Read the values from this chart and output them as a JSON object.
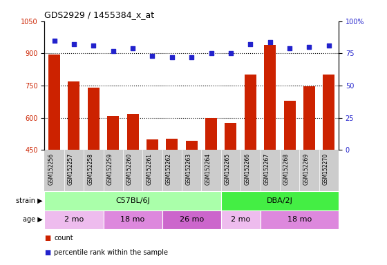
{
  "title": "GDS2929 / 1455384_x_at",
  "samples": [
    "GSM152256",
    "GSM152257",
    "GSM152258",
    "GSM152259",
    "GSM152260",
    "GSM152261",
    "GSM152262",
    "GSM152263",
    "GSM152264",
    "GSM152265",
    "GSM152266",
    "GSM152267",
    "GSM152268",
    "GSM152269",
    "GSM152270"
  ],
  "counts": [
    895,
    770,
    740,
    610,
    618,
    500,
    502,
    493,
    598,
    578,
    800,
    940,
    680,
    748,
    800
  ],
  "percentile": [
    85,
    82,
    81,
    77,
    79,
    73,
    72,
    72,
    75,
    75,
    82,
    84,
    79,
    80,
    81
  ],
  "ylim_left": [
    450,
    1050
  ],
  "ylim_right": [
    0,
    100
  ],
  "yticks_left": [
    450,
    600,
    750,
    900,
    1050
  ],
  "yticks_right": [
    0,
    25,
    50,
    75,
    100
  ],
  "bar_color": "#cc2200",
  "dot_color": "#2222cc",
  "strain_groups": [
    {
      "label": "C57BL/6J",
      "start": 0,
      "end": 9,
      "color": "#aaffaa"
    },
    {
      "label": "DBA/2J",
      "start": 9,
      "end": 15,
      "color": "#44ee44"
    }
  ],
  "age_groups": [
    {
      "label": "2 mo",
      "start": 0,
      "end": 3,
      "color": "#eebcee"
    },
    {
      "label": "18 mo",
      "start": 3,
      "end": 6,
      "color": "#dd88dd"
    },
    {
      "label": "26 mo",
      "start": 6,
      "end": 9,
      "color": "#cc66cc"
    },
    {
      "label": "2 mo",
      "start": 9,
      "end": 11,
      "color": "#eebcee"
    },
    {
      "label": "18 mo",
      "start": 11,
      "end": 15,
      "color": "#dd88dd"
    }
  ],
  "tick_label_area_color": "#cccccc",
  "bar_color_legend": "#cc2200",
  "dot_color_legend": "#2222cc",
  "ylabel_left_color": "#cc2200",
  "ylabel_right_color": "#2222cc"
}
